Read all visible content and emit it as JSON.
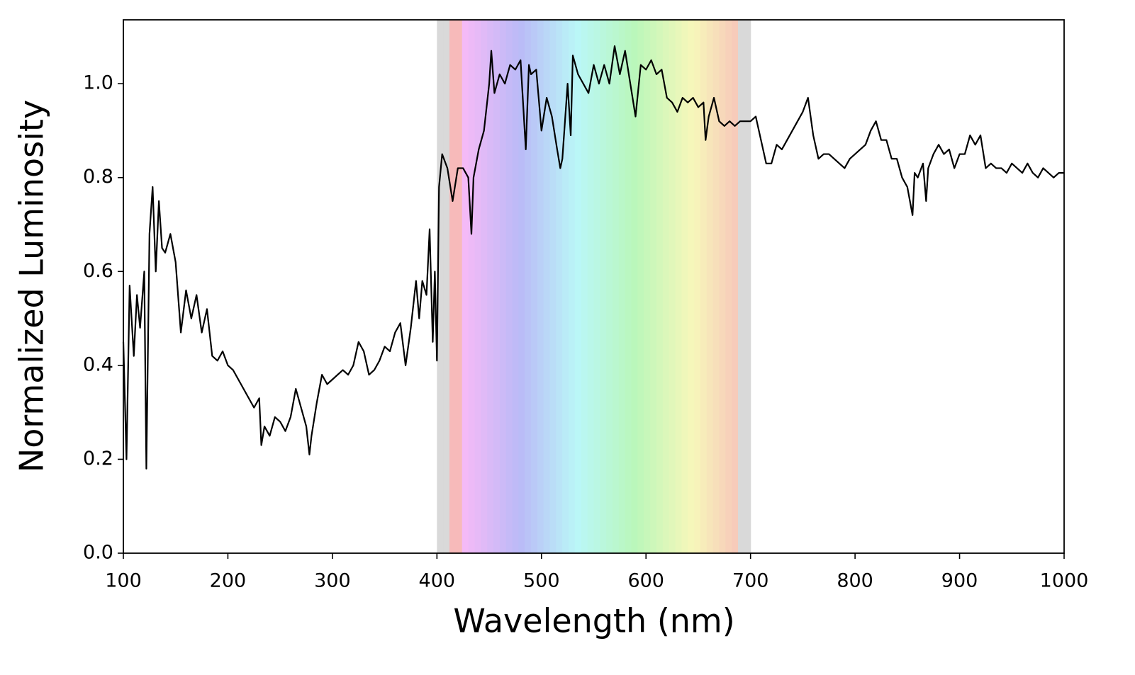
{
  "chart_data": {
    "type": "line",
    "x_label": "Wavelength (nm)",
    "y_label": "Normalized Luminosity",
    "xlim": [
      100,
      1000
    ],
    "ylim": [
      0,
      1.136
    ],
    "xticks": [
      100,
      200,
      300,
      400,
      500,
      600,
      700,
      800,
      900,
      1000
    ],
    "yticks": [
      {
        "value": 0,
        "label": "0.0"
      },
      0.2,
      0.4,
      0.6,
      0.8,
      {
        "value": 1,
        "label": "1.0"
      }
    ],
    "highlight_xrange": [
      400,
      700
    ],
    "color": "#000000",
    "x": [
      100,
      103,
      106,
      110,
      113,
      116,
      120,
      122,
      125,
      128,
      131,
      134,
      137,
      140,
      145,
      150,
      155,
      160,
      165,
      170,
      175,
      180,
      185,
      190,
      195,
      200,
      205,
      210,
      215,
      220,
      225,
      230,
      232,
      235,
      240,
      245,
      250,
      255,
      260,
      265,
      270,
      275,
      278,
      280,
      285,
      290,
      295,
      300,
      305,
      310,
      315,
      320,
      325,
      330,
      335,
      340,
      345,
      350,
      355,
      360,
      365,
      370,
      375,
      380,
      383,
      386,
      390,
      393,
      396,
      398,
      400,
      402,
      405,
      410,
      415,
      420,
      425,
      430,
      433,
      435,
      440,
      445,
      450,
      452,
      455,
      460,
      465,
      470,
      475,
      480,
      485,
      488,
      490,
      495,
      500,
      505,
      510,
      515,
      518,
      520,
      525,
      528,
      530,
      535,
      540,
      545,
      550,
      555,
      560,
      565,
      570,
      575,
      580,
      585,
      590,
      595,
      600,
      605,
      610,
      615,
      620,
      625,
      630,
      635,
      640,
      645,
      650,
      655,
      657,
      660,
      665,
      670,
      675,
      680,
      685,
      690,
      695,
      700,
      705,
      710,
      715,
      720,
      725,
      730,
      740,
      745,
      750,
      755,
      760,
      765,
      770,
      775,
      780,
      785,
      790,
      795,
      800,
      805,
      810,
      815,
      820,
      825,
      830,
      835,
      840,
      845,
      850,
      855,
      857,
      860,
      865,
      868,
      870,
      875,
      880,
      885,
      890,
      895,
      900,
      905,
      910,
      915,
      920,
      925,
      930,
      935,
      940,
      945,
      950,
      955,
      960,
      965,
      970,
      975,
      980,
      985,
      990,
      995,
      1000
    ],
    "values": [
      0.45,
      0.2,
      0.57,
      0.42,
      0.55,
      0.48,
      0.6,
      0.18,
      0.68,
      0.78,
      0.6,
      0.75,
      0.65,
      0.64,
      0.68,
      0.62,
      0.47,
      0.56,
      0.5,
      0.55,
      0.47,
      0.52,
      0.42,
      0.41,
      0.43,
      0.4,
      0.39,
      0.37,
      0.35,
      0.33,
      0.31,
      0.33,
      0.23,
      0.27,
      0.25,
      0.29,
      0.28,
      0.26,
      0.29,
      0.35,
      0.31,
      0.27,
      0.21,
      0.25,
      0.32,
      0.38,
      0.36,
      0.37,
      0.38,
      0.39,
      0.38,
      0.4,
      0.45,
      0.43,
      0.38,
      0.39,
      0.41,
      0.44,
      0.43,
      0.47,
      0.49,
      0.4,
      0.48,
      0.58,
      0.5,
      0.58,
      0.55,
      0.69,
      0.45,
      0.6,
      0.41,
      0.78,
      0.85,
      0.82,
      0.75,
      0.82,
      0.82,
      0.8,
      0.68,
      0.8,
      0.86,
      0.9,
      1.0,
      1.07,
      0.98,
      1.02,
      1.0,
      1.04,
      1.03,
      1.05,
      0.86,
      1.04,
      1.02,
      1.03,
      0.9,
      0.97,
      0.93,
      0.86,
      0.82,
      0.84,
      1.0,
      0.89,
      1.06,
      1.02,
      1.0,
      0.98,
      1.04,
      1.0,
      1.04,
      1.0,
      1.08,
      1.02,
      1.07,
      1.0,
      0.93,
      1.04,
      1.03,
      1.05,
      1.02,
      1.03,
      0.97,
      0.96,
      0.94,
      0.97,
      0.96,
      0.97,
      0.95,
      0.96,
      0.88,
      0.93,
      0.97,
      0.92,
      0.91,
      0.92,
      0.91,
      0.92,
      0.92,
      0.92,
      0.93,
      0.88,
      0.83,
      0.83,
      0.87,
      0.86,
      0.9,
      0.92,
      0.94,
      0.97,
      0.89,
      0.84,
      0.85,
      0.85,
      0.84,
      0.83,
      0.82,
      0.84,
      0.85,
      0.86,
      0.87,
      0.9,
      0.92,
      0.88,
      0.88,
      0.84,
      0.84,
      0.8,
      0.78,
      0.72,
      0.81,
      0.8,
      0.83,
      0.75,
      0.82,
      0.85,
      0.87,
      0.85,
      0.86,
      0.82,
      0.85,
      0.85,
      0.89,
      0.87,
      0.89,
      0.82,
      0.83,
      0.82,
      0.82,
      0.81,
      0.83,
      0.82,
      0.81,
      0.83,
      0.81,
      0.8,
      0.82,
      0.81,
      0.8,
      0.81,
      0.81
    ]
  }
}
